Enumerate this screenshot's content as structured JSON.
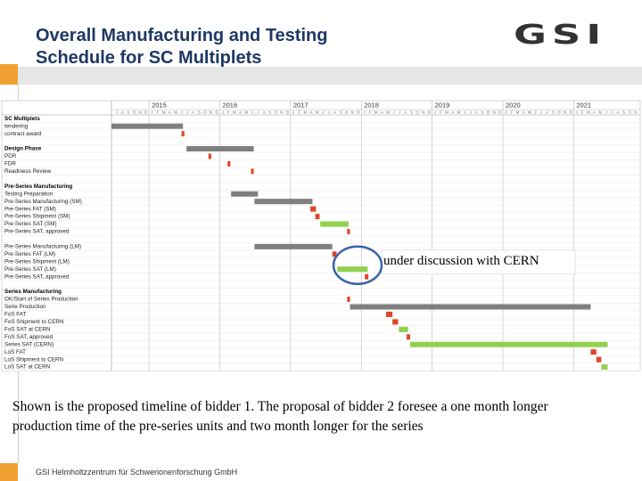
{
  "title_lines": [
    "Overall Manufacturing and Testing",
    "Schedule for SC Multiplets"
  ],
  "logo": "GSI",
  "annotation": "under discussion with CERN",
  "caption_lines": [
    "Shown is the proposed timeline of bidder 1. The proposal of bidder 2 foresee a one month longer",
    "production time of the pre-series units and two month longer for the series"
  ],
  "footer": "GSI Helmholtzzentrum für Schwerionenforschung GmbH",
  "chart_data": {
    "type": "gantt",
    "xlim": [
      2014.47,
      2021.94
    ],
    "xticks": [
      2015,
      2016,
      2017,
      2018,
      2019,
      2020,
      2021
    ],
    "months": [
      "J",
      "F",
      "M",
      "A",
      "M",
      "J",
      "J",
      "A",
      "S",
      "O",
      "N",
      "D"
    ],
    "grid": true,
    "tasks": [
      {
        "label": "SC Multiplets",
        "header": true,
        "start": null,
        "end": null,
        "color": null
      },
      {
        "label": "tendering",
        "start": 2014.47,
        "end": 2015.48,
        "color": "#7f7f7f"
      },
      {
        "label": "contract award",
        "start": 2015.46,
        "end": 2015.5,
        "color": "#e0452a"
      },
      {
        "label": null,
        "start": null,
        "end": null,
        "color": null
      },
      {
        "label": "Design Phase",
        "header": true,
        "start": 2015.53,
        "end": 2016.48,
        "color": "#7f7f7f"
      },
      {
        "label": "PDR",
        "start": 2015.84,
        "end": 2015.88,
        "color": "#e0452a"
      },
      {
        "label": "FDR",
        "start": 2016.11,
        "end": 2016.15,
        "color": "#e0452a"
      },
      {
        "label": "Readiness Review",
        "start": 2016.44,
        "end": 2016.48,
        "color": "#e0452a"
      },
      {
        "label": null,
        "start": null,
        "end": null,
        "color": null
      },
      {
        "label": "Pre-Series Manufacturing",
        "header": true,
        "start": null,
        "end": null,
        "color": null
      },
      {
        "label": "Testing Preparation",
        "start": 2016.16,
        "end": 2016.54,
        "color": "#7f7f7f"
      },
      {
        "label": "Pre-Series Manufacturing (SM)",
        "start": 2016.49,
        "end": 2017.31,
        "color": "#7f7f7f"
      },
      {
        "label": "Pre-Series FAT (SM)",
        "start": 2017.28,
        "end": 2017.36,
        "color": "#e0452a"
      },
      {
        "label": "Pre-Series Shipment (SM)",
        "start": 2017.35,
        "end": 2017.41,
        "color": "#e0452a"
      },
      {
        "label": "Pre-Series SAT (SM)",
        "start": 2017.42,
        "end": 2017.82,
        "color": "#92d050"
      },
      {
        "label": "Pre-Series SAT, approved",
        "start": 2017.8,
        "end": 2017.84,
        "color": "#e0452a"
      },
      {
        "label": null,
        "start": null,
        "end": null,
        "color": null
      },
      {
        "label": "Pre-Series Manufacturing (LM)",
        "start": 2016.49,
        "end": 2017.59,
        "color": "#7f7f7f"
      },
      {
        "label": "Pre-Series FAT (LM)",
        "start": 2017.59,
        "end": 2017.65,
        "color": "#e0452a"
      },
      {
        "label": "Pre-Series Shipment (LM)",
        "start": null,
        "end": null,
        "color": null
      },
      {
        "label": "Pre-Series SAT (LM)",
        "start": 2017.66,
        "end": 2018.09,
        "color": "#92d050"
      },
      {
        "label": "Pre-Series SAT, approved",
        "start": 2018.05,
        "end": 2018.1,
        "color": "#e0452a"
      },
      {
        "label": null,
        "start": null,
        "end": null,
        "color": null
      },
      {
        "label": "Series Manufacturing",
        "header": true,
        "start": null,
        "end": null,
        "color": null
      },
      {
        "label": "OK/Start of Series Production",
        "start": 2017.8,
        "end": 2017.84,
        "color": "#e0452a"
      },
      {
        "label": "Serie Production",
        "start": 2017.84,
        "end": 2021.24,
        "color": "#7f7f7f"
      },
      {
        "label": "FoS FAT",
        "start": 2018.35,
        "end": 2018.44,
        "color": "#e0452a"
      },
      {
        "label": "FoS Shipment to CERN",
        "start": 2018.44,
        "end": 2018.52,
        "color": "#e0452a"
      },
      {
        "label": "FoS SAT at CERN",
        "start": 2018.53,
        "end": 2018.66,
        "color": "#92d050"
      },
      {
        "label": "FoS SAT, approved",
        "start": 2018.64,
        "end": 2018.69,
        "color": "#e0452a"
      },
      {
        "label": "Series SAT (CERN)",
        "start": 2018.69,
        "end": 2021.48,
        "color": "#92d050"
      },
      {
        "label": "LoS FAT",
        "start": 2021.24,
        "end": 2021.32,
        "color": "#e0452a"
      },
      {
        "label": "LoS Shipment to CERN",
        "start": 2021.32,
        "end": 2021.39,
        "color": "#e0452a"
      },
      {
        "label": "LoS SAT at CERN",
        "start": 2021.39,
        "end": 2021.48,
        "color": "#92d050"
      }
    ]
  }
}
